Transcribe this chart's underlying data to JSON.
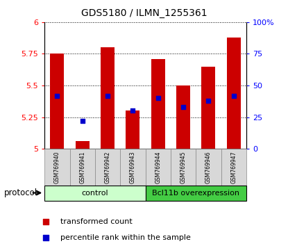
{
  "title": "GDS5180 / ILMN_1255361",
  "samples": [
    "GSM769940",
    "GSM769941",
    "GSM769942",
    "GSM769943",
    "GSM769944",
    "GSM769945",
    "GSM769946",
    "GSM769947"
  ],
  "transformed_counts": [
    5.75,
    5.06,
    5.8,
    5.3,
    5.71,
    5.5,
    5.65,
    5.88
  ],
  "percentile_ranks": [
    42,
    22,
    42,
    30,
    40,
    33,
    38,
    42
  ],
  "ylim_left": [
    5.0,
    6.0
  ],
  "ylim_right": [
    0,
    100
  ],
  "yticks_left": [
    5.0,
    5.25,
    5.5,
    5.75,
    6.0
  ],
  "yticks_right": [
    0,
    25,
    50,
    75,
    100
  ],
  "bar_color": "#cc0000",
  "dot_color": "#0000cc",
  "bar_width": 0.55,
  "groups": [
    {
      "label": "control",
      "color": "#ccffcc",
      "start": 0,
      "end": 4
    },
    {
      "label": "Bcl11b overexpression",
      "color": "#44cc44",
      "start": 4,
      "end": 8
    }
  ],
  "protocol_label": "protocol",
  "legend_items": [
    {
      "label": "transformed count",
      "color": "#cc0000"
    },
    {
      "label": "percentile rank within the sample",
      "color": "#0000cc"
    }
  ],
  "label_bg": "#d8d8d8",
  "label_border": "#888888"
}
